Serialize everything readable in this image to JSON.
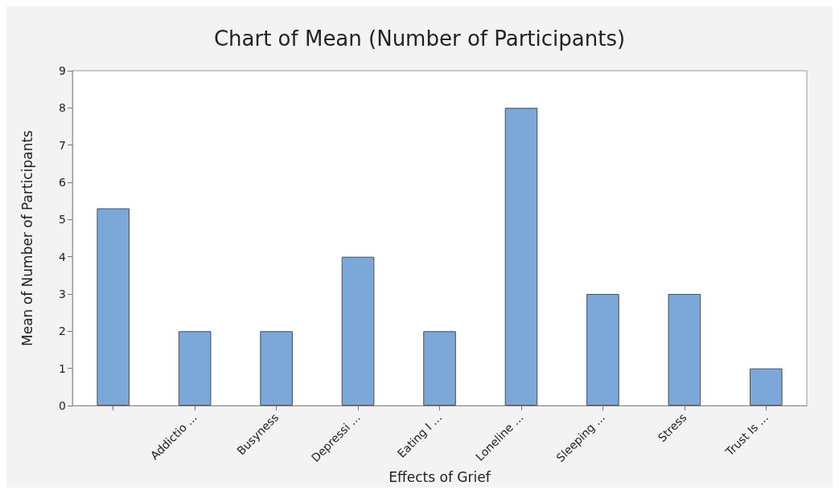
{
  "chart_data": {
    "type": "bar",
    "title": "Chart of Mean (Number of Participants)",
    "xlabel": "Effects of Grief",
    "ylabel": "Mean of Number of Participants",
    "categories": [
      null,
      "Addictio ...",
      "Busyness",
      "Depressi ...",
      "Eating I ...",
      "Loneline ...",
      "Sleeping ...",
      "Stress",
      "Trust Is ..."
    ],
    "values": [
      5.3,
      2,
      2,
      4,
      2,
      8,
      3,
      3,
      1
    ],
    "color": "#7ba7d9",
    "ylim": [
      0,
      9
    ],
    "yticks": [
      0,
      1,
      2,
      3,
      4,
      5,
      6,
      7,
      8,
      9
    ]
  }
}
